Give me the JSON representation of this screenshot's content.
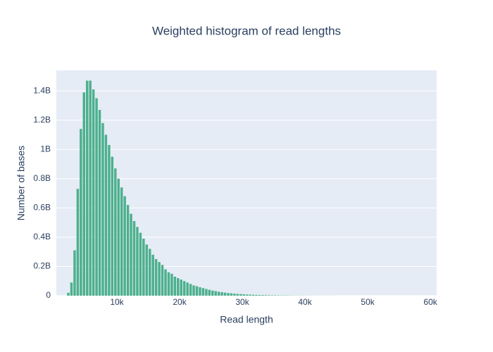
{
  "chart_data": {
    "type": "histogram",
    "title": "Weighted histogram of read lengths",
    "x_label": "Read length",
    "y_label": "Number of bases",
    "color": "#4cb08c",
    "grid": true,
    "bins": [
      2000,
      2500,
      3000,
      3500,
      4000,
      4500,
      5000,
      5500,
      6000,
      6500,
      7000,
      7500,
      8000,
      8500,
      9000,
      9500,
      10000,
      10500,
      11000,
      11500,
      12000,
      12500,
      13000,
      13500,
      14000,
      14500,
      15000,
      15500,
      16000,
      16500,
      17000,
      17500,
      18000,
      18500,
      19000,
      19500,
      20000,
      20500,
      21000,
      21500,
      22000,
      22500,
      23000,
      23500,
      24000,
      24500,
      25000,
      25500,
      26000,
      26500,
      27000,
      27500,
      28000,
      28500,
      29000,
      29500,
      30000,
      30500,
      31000,
      31500,
      32000,
      32500,
      33000,
      33500,
      34000,
      34500,
      35000,
      35500,
      36000,
      36500,
      37000,
      37500,
      38000,
      38500,
      39000,
      39500,
      40000,
      40500,
      41000,
      41500,
      42000,
      42500,
      43000,
      43500,
      44000,
      44500,
      45000
    ],
    "counts": [
      20000000,
      90000000,
      310000000,
      730000000,
      1140000000,
      1390000000,
      1470000000,
      1470000000,
      1410000000,
      1350000000,
      1270000000,
      1180000000,
      1100000000,
      1030000000,
      950000000,
      870000000,
      800000000,
      740000000,
      680000000,
      620000000,
      560000000,
      510000000,
      470000000,
      430000000,
      390000000,
      350000000,
      320000000,
      280000000,
      250000000,
      230000000,
      210000000,
      180000000,
      160000000,
      150000000,
      130000000,
      120000000,
      110000000,
      100000000,
      90000000,
      80000000,
      70000000,
      65000000,
      58000000,
      52000000,
      46000000,
      40000000,
      35000000,
      31000000,
      27000000,
      24000000,
      21000000,
      18000000,
      16000000,
      14000000,
      12000000,
      11000000,
      9500000,
      8300000,
      7200000,
      6300000,
      5500000,
      4800000,
      4200000,
      3600000,
      3100000,
      2700000,
      2400000,
      2100000,
      1800000,
      1600000,
      1400000,
      1200000,
      1000000,
      900000,
      800000,
      700000,
      600000,
      500000,
      400000,
      400000,
      300000,
      300000,
      200000,
      200000,
      200000,
      100000
    ],
    "xlim": [
      337,
      61000
    ],
    "xticks": [
      {
        "value": 10000,
        "label": "10k"
      },
      {
        "value": 20000,
        "label": "20k"
      },
      {
        "value": 30000,
        "label": "30k"
      },
      {
        "value": 40000,
        "label": "40k"
      },
      {
        "value": 50000,
        "label": "50k"
      },
      {
        "value": 60000,
        "label": "60k"
      }
    ],
    "ylim": [
      0,
      1540000000
    ],
    "yticks": [
      0,
      {
        "value": 200000000,
        "label": "0.2B"
      },
      {
        "value": 400000000,
        "label": "0.4B"
      },
      {
        "value": 600000000,
        "label": "0.6B"
      },
      {
        "value": 800000000,
        "label": "0.8B"
      },
      {
        "value": 1000000000,
        "label": "1B"
      },
      {
        "value": 1200000000,
        "label": "1.2B"
      },
      {
        "value": 1400000000,
        "label": "1.4B"
      }
    ]
  }
}
